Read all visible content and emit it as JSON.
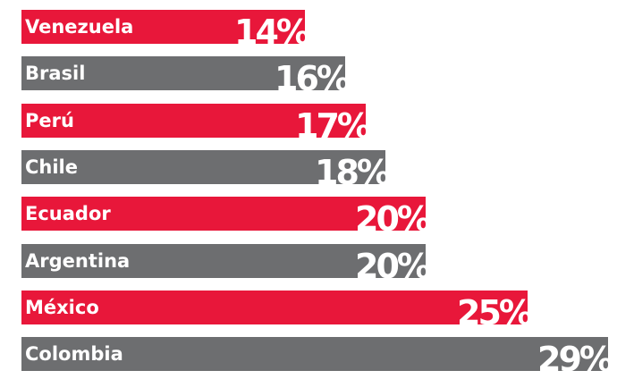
{
  "chart_data": {
    "type": "bar",
    "orientation": "horizontal",
    "categories": [
      "Venezuela",
      "Brasil",
      "Perú",
      "Chile",
      "Ecuador",
      "Argentina",
      "México",
      "Colombia"
    ],
    "values": [
      14,
      16,
      17,
      18,
      20,
      20,
      25,
      29
    ],
    "value_labels": [
      "14%",
      "16%",
      "17%",
      "18%",
      "20%",
      "20%",
      "25%",
      "29%"
    ],
    "title": "",
    "xlabel": "",
    "ylabel": "",
    "grid": false,
    "legend": "none",
    "colors": {
      "red": "#e8173a",
      "gray": "#6d6e70"
    },
    "bar_colors": [
      "red",
      "gray",
      "red",
      "gray",
      "red",
      "gray",
      "red",
      "gray"
    ]
  }
}
